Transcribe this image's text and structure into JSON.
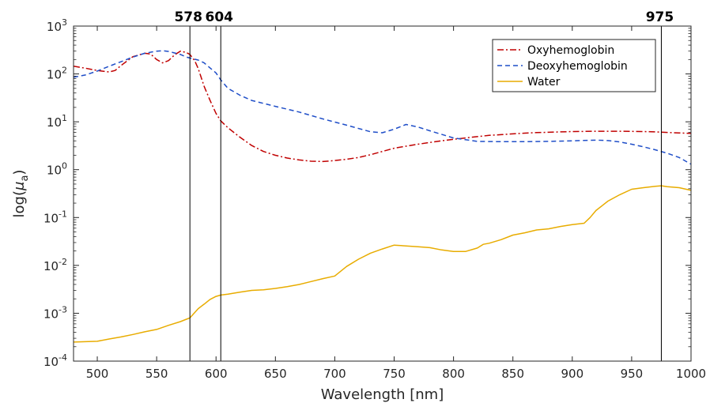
{
  "chart_data": {
    "type": "line",
    "xlabel": "Wavelength [nm]",
    "ylabel_prefix": "log(",
    "ylabel_mu": "μ",
    "ylabel_sub": "a",
    "ylabel_suffix": ")",
    "xlim": [
      480,
      1000
    ],
    "ylim": [
      0.0001,
      1000
    ],
    "yscale": "log",
    "grid": false,
    "legend_position": "top-right",
    "x_ticks": [
      500,
      550,
      600,
      650,
      700,
      750,
      800,
      850,
      900,
      950,
      1000
    ],
    "x_tick_labels": [
      "500",
      "550",
      "600",
      "650",
      "700",
      "750",
      "800",
      "850",
      "900",
      "950",
      "1000"
    ],
    "y_ticks": [
      {
        "value": 0.0001,
        "base": "10",
        "exp": "-4"
      },
      {
        "value": 0.001,
        "base": "10",
        "exp": "-3"
      },
      {
        "value": 0.01,
        "base": "10",
        "exp": "-2"
      },
      {
        "value": 0.1,
        "base": "10",
        "exp": "-1"
      },
      {
        "value": 1,
        "base": "10",
        "exp": "0"
      },
      {
        "value": 10,
        "base": "10",
        "exp": "1"
      },
      {
        "value": 100,
        "base": "10",
        "exp": "2"
      },
      {
        "value": 1000,
        "base": "10",
        "exp": "3"
      }
    ],
    "vertical_lines": [
      {
        "x": 578,
        "label": "578"
      },
      {
        "x": 604,
        "label": "604"
      },
      {
        "x": 975,
        "label": "975"
      }
    ],
    "series": [
      {
        "name": "Oxyhemoglobin",
        "color": "#c00000",
        "dash": "dash-dot",
        "x": [
          480,
          490,
          500,
          510,
          515,
          520,
          530,
          540,
          545,
          550,
          555,
          560,
          565,
          570,
          575,
          578,
          582,
          585,
          590,
          595,
          600,
          604,
          610,
          620,
          630,
          640,
          650,
          660,
          670,
          680,
          690,
          700,
          710,
          720,
          730,
          740,
          750,
          760,
          770,
          780,
          790,
          800,
          810,
          820,
          830,
          840,
          850,
          860,
          870,
          880,
          890,
          900,
          910,
          920,
          930,
          940,
          950,
          960,
          970,
          980,
          990,
          1000
        ],
        "y": [
          145,
          132,
          118,
          110,
          118,
          150,
          230,
          270,
          260,
          200,
          170,
          190,
          250,
          300,
          280,
          255,
          190,
          130,
          55,
          28,
          15,
          10.5,
          7.5,
          4.8,
          3.2,
          2.4,
          2.0,
          1.75,
          1.6,
          1.5,
          1.48,
          1.55,
          1.65,
          1.8,
          2.05,
          2.4,
          2.8,
          3.1,
          3.4,
          3.7,
          4.0,
          4.3,
          4.6,
          4.9,
          5.2,
          5.4,
          5.6,
          5.8,
          5.95,
          6.05,
          6.15,
          6.25,
          6.3,
          6.35,
          6.35,
          6.35,
          6.3,
          6.25,
          6.15,
          6.0,
          5.85,
          5.7
        ]
      },
      {
        "name": "Deoxyhemoglobin",
        "color": "#1f4ec8",
        "dash": "dashed",
        "x": [
          480,
          490,
          500,
          510,
          520,
          530,
          540,
          550,
          555,
          560,
          570,
          575,
          578,
          585,
          590,
          600,
          604,
          610,
          620,
          630,
          650,
          670,
          690,
          710,
          730,
          740,
          750,
          760,
          770,
          780,
          800,
          820,
          840,
          860,
          880,
          900,
          920,
          930,
          940,
          950,
          960,
          970,
          980,
          990,
          1000
        ],
        "y": [
          85,
          95,
          115,
          145,
          180,
          225,
          270,
          300,
          305,
          295,
          255,
          225,
          215,
          195,
          170,
          105,
          75,
          50,
          36,
          28,
          21,
          16,
          11.5,
          8.5,
          6.2,
          5.9,
          7.0,
          8.8,
          7.8,
          6.5,
          4.6,
          3.9,
          3.85,
          3.85,
          3.9,
          4.0,
          4.15,
          4.05,
          3.8,
          3.4,
          3.0,
          2.6,
          2.2,
          1.8,
          1.3
        ]
      },
      {
        "name": "Water",
        "color": "#e8ac00",
        "dash": "solid",
        "x": [
          480,
          500,
          510,
          520,
          530,
          540,
          550,
          560,
          570,
          575,
          578,
          585,
          590,
          595,
          600,
          604,
          610,
          620,
          630,
          640,
          650,
          660,
          670,
          680,
          690,
          700,
          710,
          720,
          730,
          740,
          750,
          760,
          770,
          780,
          790,
          800,
          810,
          820,
          825,
          830,
          840,
          850,
          860,
          870,
          880,
          890,
          900,
          910,
          915,
          920,
          930,
          940,
          950,
          960,
          970,
          975,
          980,
          990,
          1000
        ],
        "y": [
          0.00025,
          0.00026,
          0.00029,
          0.00032,
          0.00036,
          0.00041,
          0.00046,
          0.00056,
          0.00067,
          0.00075,
          0.0008,
          0.00125,
          0.00155,
          0.00195,
          0.00225,
          0.0024,
          0.0025,
          0.00275,
          0.003,
          0.0031,
          0.0033,
          0.0036,
          0.004,
          0.0046,
          0.0053,
          0.006,
          0.0095,
          0.0135,
          0.018,
          0.022,
          0.0265,
          0.0255,
          0.0245,
          0.0235,
          0.021,
          0.0195,
          0.0195,
          0.023,
          0.0275,
          0.029,
          0.0345,
          0.043,
          0.048,
          0.055,
          0.058,
          0.065,
          0.071,
          0.076,
          0.1,
          0.14,
          0.22,
          0.3,
          0.39,
          0.42,
          0.45,
          0.46,
          0.44,
          0.42,
          0.37
        ]
      }
    ]
  }
}
